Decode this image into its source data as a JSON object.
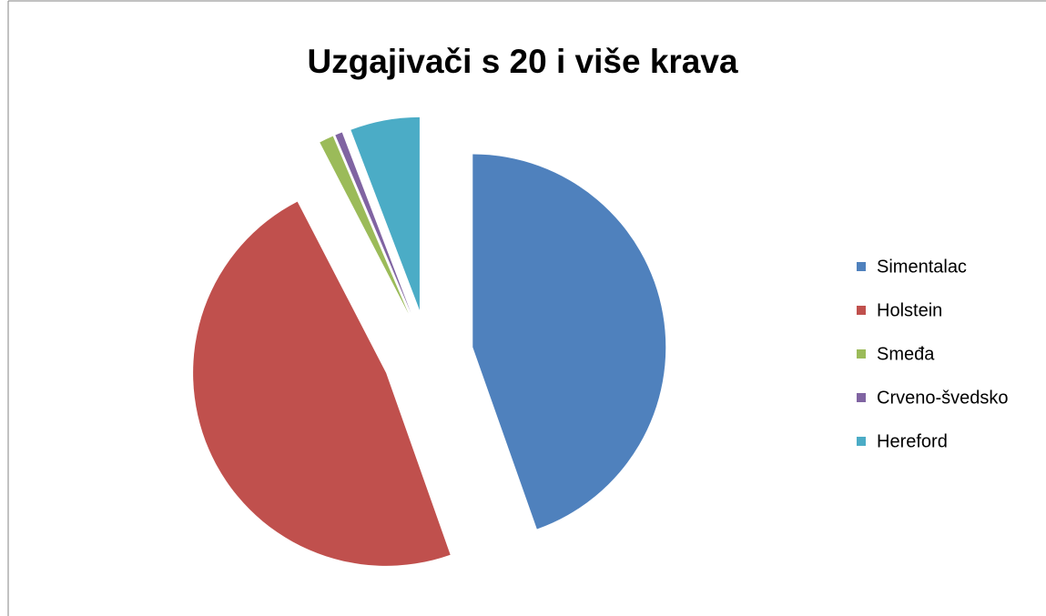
{
  "chart_data": {
    "type": "pie",
    "title": "Uzgajivači s 20 i više krava",
    "categories": [
      "Simentalac",
      "Holstein",
      "Smeđa",
      "Crveno-švedsko",
      "Hereford"
    ],
    "values": [
      44.6,
      47.8,
      1.2,
      0.6,
      5.8
    ],
    "colors": [
      "#4f81bd",
      "#c0504d",
      "#9bbb59",
      "#8064a2",
      "#4bacc6"
    ],
    "legend": "right"
  }
}
